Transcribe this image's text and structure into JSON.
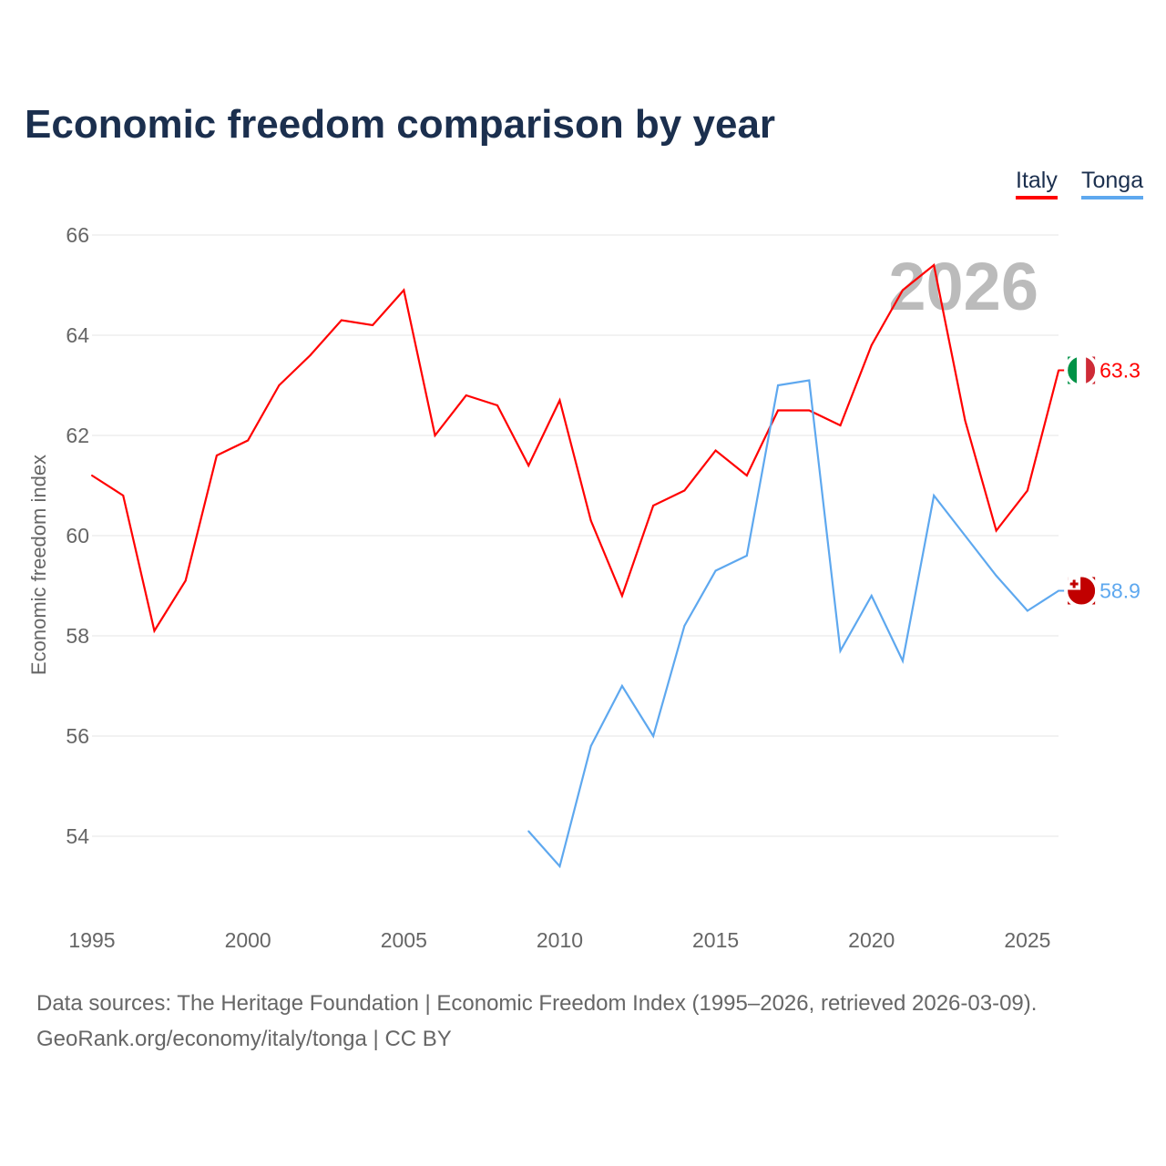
{
  "title": "Economic freedom comparison by year",
  "legend": [
    {
      "name": "Italy",
      "color": "#ff0000"
    },
    {
      "name": "Tonga",
      "color": "#5ea8ef"
    }
  ],
  "watermark_year": "2026",
  "sources": {
    "line1": "Data sources: The Heritage Foundation | Economic Freedom Index (1995–2026, retrieved 2026-03-09).",
    "line2": "GeoRank.org/economy/italy/tonga | CC BY"
  },
  "chart_data": {
    "type": "line",
    "title": "Economic freedom comparison by year",
    "xlabel": "",
    "ylabel": "Economic freedom index",
    "xlim": [
      1995,
      2026
    ],
    "ylim": [
      52.5,
      66
    ],
    "yticks": [
      54,
      56,
      58,
      60,
      62,
      64,
      66
    ],
    "xticks": [
      1995,
      2000,
      2005,
      2010,
      2015,
      2020,
      2025
    ],
    "grid": true,
    "legend_position": "top-right",
    "series": [
      {
        "name": "Italy",
        "color": "#ff0000",
        "end_label": "63.3",
        "x": [
          1995,
          1996,
          1997,
          1998,
          1999,
          2000,
          2001,
          2002,
          2003,
          2004,
          2005,
          2006,
          2007,
          2008,
          2009,
          2010,
          2011,
          2012,
          2013,
          2014,
          2015,
          2016,
          2017,
          2018,
          2019,
          2020,
          2021,
          2022,
          2023,
          2024,
          2025,
          2026
        ],
        "values": [
          61.2,
          60.8,
          58.1,
          59.1,
          61.6,
          61.9,
          63.0,
          63.6,
          64.3,
          64.2,
          64.9,
          62.0,
          62.8,
          62.6,
          61.4,
          62.7,
          60.3,
          58.8,
          60.6,
          60.9,
          61.7,
          61.2,
          62.5,
          62.5,
          62.2,
          63.8,
          64.9,
          65.4,
          62.3,
          60.1,
          60.9,
          63.3
        ]
      },
      {
        "name": "Tonga",
        "color": "#5ea8ef",
        "end_label": "58.9",
        "x": [
          2009,
          2010,
          2011,
          2012,
          2013,
          2014,
          2015,
          2016,
          2017,
          2018,
          2019,
          2020,
          2021,
          2022,
          2023,
          2024,
          2025,
          2026
        ],
        "values": [
          54.1,
          53.4,
          55.8,
          57.0,
          56.0,
          58.2,
          59.3,
          59.6,
          63.0,
          63.1,
          57.7,
          58.8,
          57.5,
          60.8,
          60.0,
          59.2,
          58.5,
          58.9
        ]
      }
    ]
  }
}
